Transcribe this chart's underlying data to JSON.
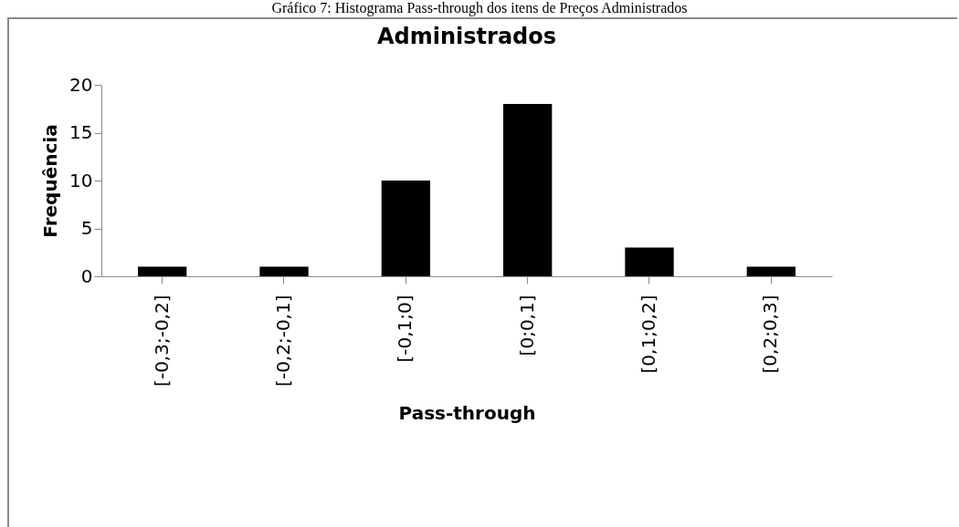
{
  "chart_data": {
    "type": "bar",
    "title": "Administrados",
    "xlabel": "Pass-through",
    "ylabel": "Frequência",
    "annotations": [
      "Gráfico 7: Histograma Pass-through dos itens de Preços Administrados"
    ],
    "categories": [
      "[-0,3;-0,2]",
      "[-0,2;-0,1]",
      "[-0,1;0]",
      "[0;0,1]",
      "[0,1;0,2]",
      "[0,2;0,3]"
    ],
    "values": [
      1,
      1,
      10,
      18,
      3,
      1
    ],
    "color": "#000000",
    "ylim": [
      0,
      20
    ],
    "yticks": [
      0,
      5,
      10,
      15,
      20
    ],
    "grid": false
  }
}
